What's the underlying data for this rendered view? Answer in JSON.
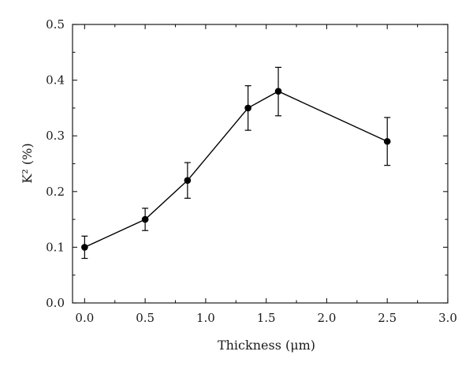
{
  "chart_data": {
    "type": "line",
    "title": "",
    "xlabel": "Thickness (μm)",
    "ylabel": "K² (%)",
    "xlim": [
      -0.1,
      3.0
    ],
    "ylim": [
      0.0,
      0.5
    ],
    "x_ticks": [
      0.0,
      0.5,
      1.0,
      1.5,
      2.0,
      2.5,
      3.0
    ],
    "y_ticks": [
      0.0,
      0.1,
      0.2,
      0.3,
      0.4,
      0.5
    ],
    "x_tick_labels": [
      "0.0",
      "0.5",
      "1.0",
      "1.5",
      "2.0",
      "2.5",
      "3.0"
    ],
    "y_tick_labels": [
      "0.0",
      "0.1",
      "0.2",
      "0.3",
      "0.4",
      "0.5"
    ],
    "grid": false,
    "legend": "none",
    "series": [
      {
        "x": [
          0.0,
          0.5,
          0.85,
          1.35,
          1.6,
          2.5
        ],
        "y": [
          0.1,
          0.15,
          0.22,
          0.35,
          0.38,
          0.29
        ],
        "y_err_upper": [
          0.12,
          0.17,
          0.252,
          0.39,
          0.423,
          0.333
        ],
        "y_err_lower": [
          0.08,
          0.13,
          0.188,
          0.31,
          0.336,
          0.247
        ],
        "marker": "circle",
        "color": "#000000"
      }
    ]
  }
}
